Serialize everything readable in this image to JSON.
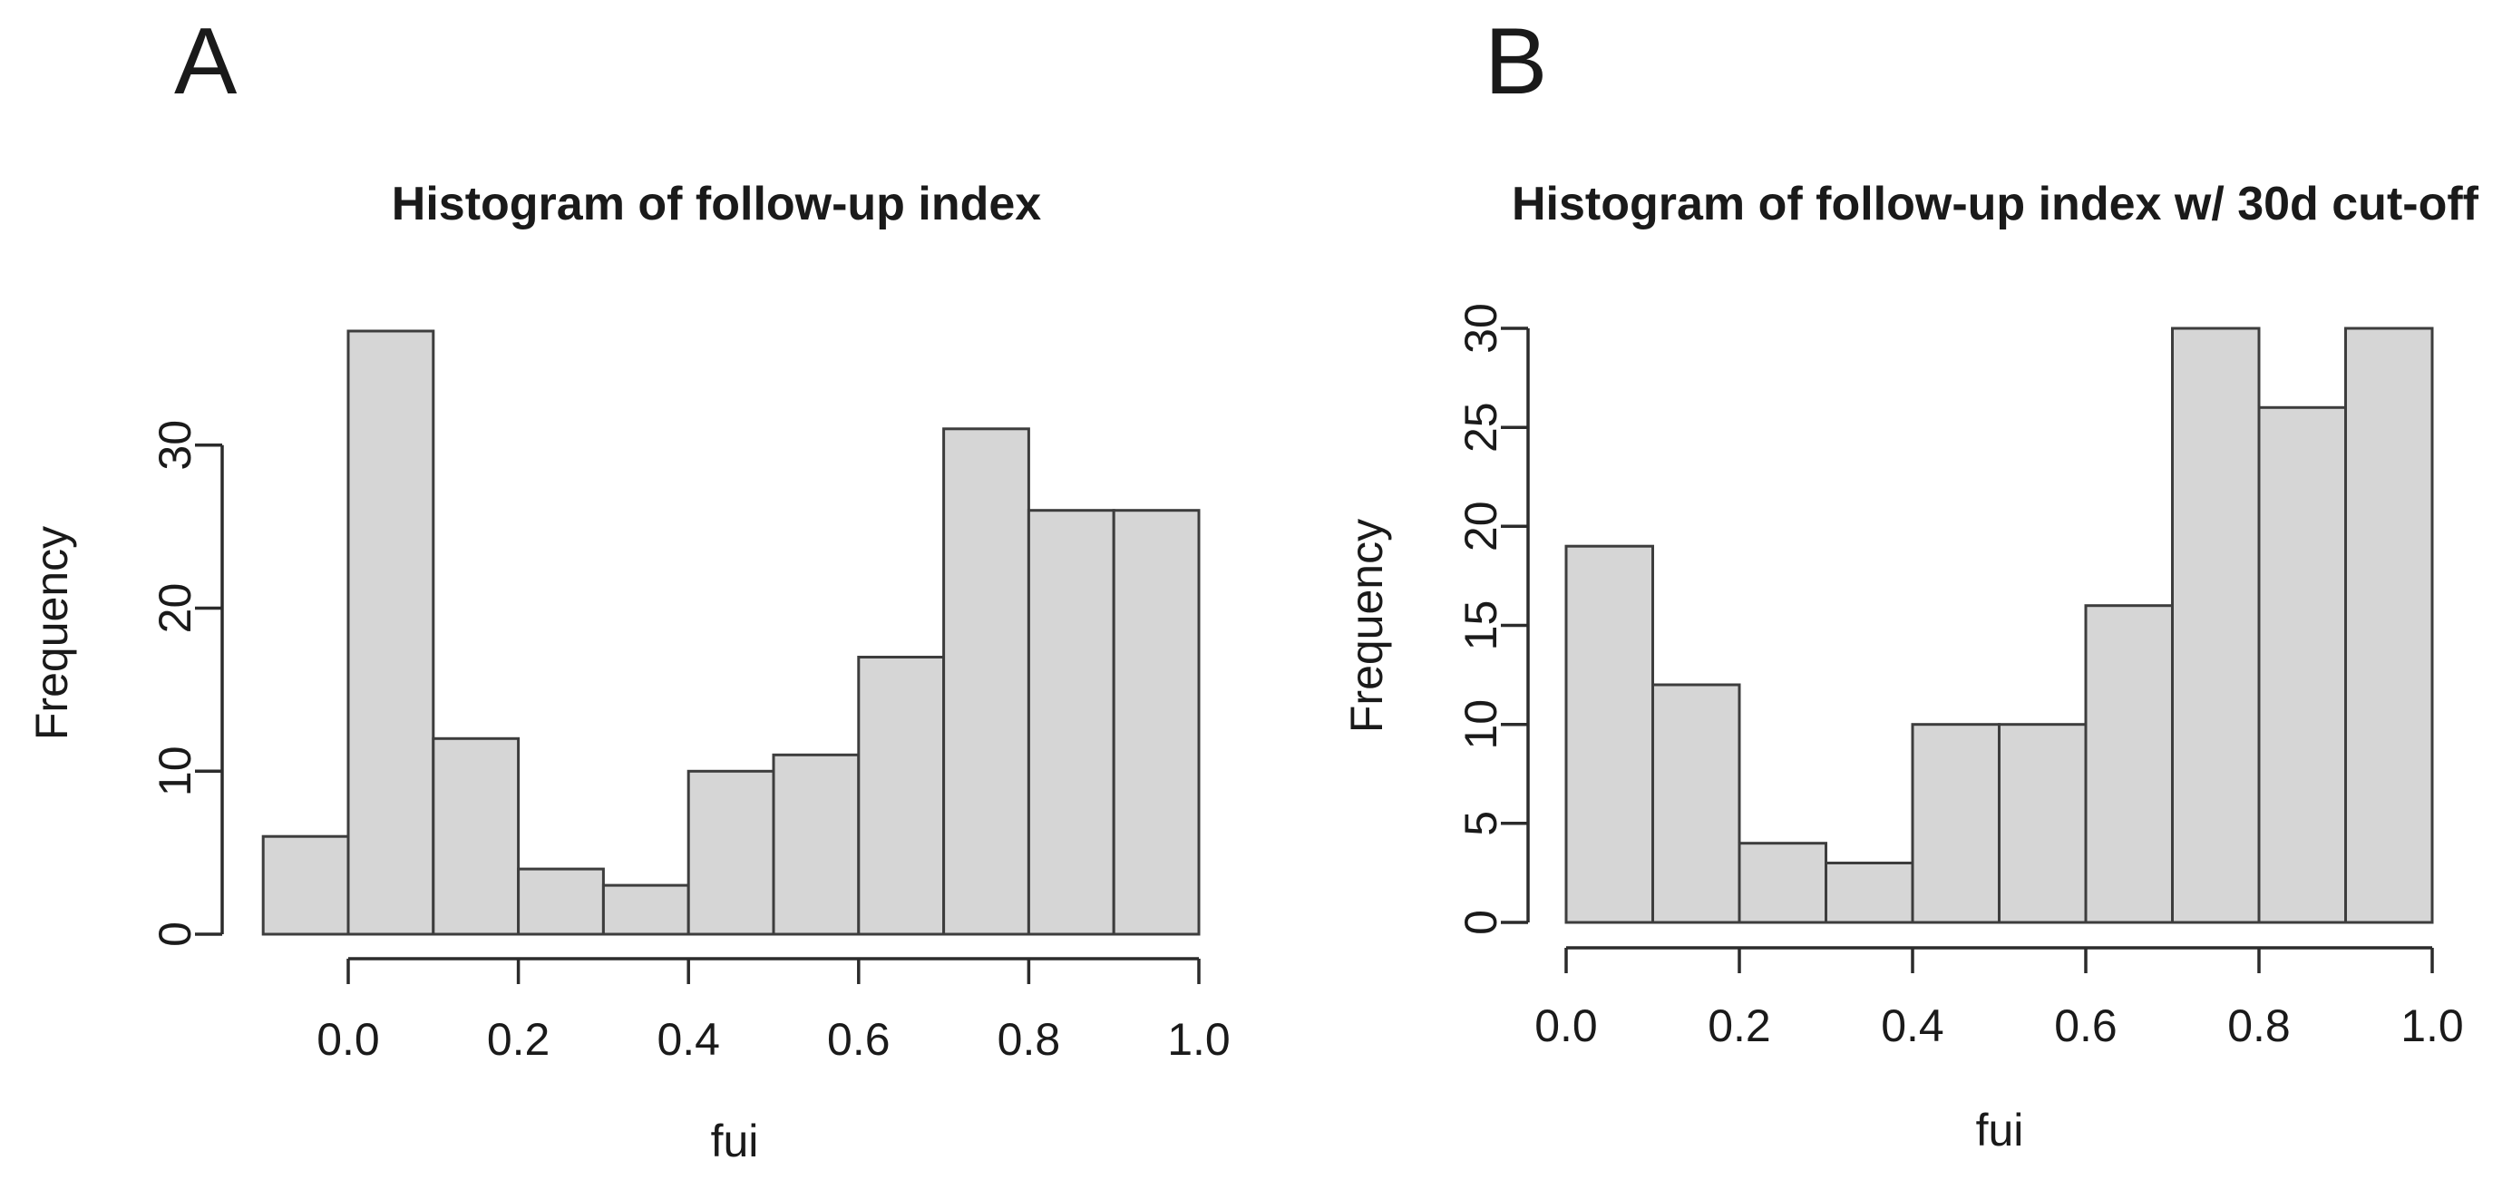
{
  "page": {
    "background": "#ffffff"
  },
  "colors": {
    "bar_fill": "#d6d6d6",
    "bar_stroke": "#3d3d3d",
    "axis": "#2b2b2b",
    "text": "#1a1a1a"
  },
  "chart_data": [
    {
      "type": "bar",
      "panel_label": "A",
      "title": "Histogram of follow-up index",
      "xlabel": "fui",
      "ylabel": "Frequency",
      "bin_edges": [
        -0.1,
        0.0,
        0.1,
        0.2,
        0.3,
        0.4,
        0.5,
        0.6,
        0.7,
        0.8,
        0.9,
        1.0
      ],
      "counts": [
        6,
        37,
        12,
        4,
        3,
        10,
        11,
        17,
        31,
        26,
        26
      ],
      "x_ticks": [
        0.0,
        0.2,
        0.4,
        0.6,
        0.8,
        1.0
      ],
      "x_tick_labels": [
        "0.0",
        "0.2",
        "0.4",
        "0.6",
        "0.8",
        "1.0"
      ],
      "y_ticks": [
        0,
        10,
        20,
        30
      ],
      "y_tick_labels": [
        "0",
        "10",
        "20",
        "30"
      ],
      "xlim": [
        -0.1,
        1.0
      ],
      "ylim": [
        0,
        37
      ],
      "grid": false,
      "legend": "none"
    },
    {
      "type": "bar",
      "panel_label": "B",
      "title": "Histogram of follow-up index w/ 30d cut-off",
      "xlabel": "fui",
      "ylabel": "Frequency",
      "bin_edges": [
        0.0,
        0.1,
        0.2,
        0.3,
        0.4,
        0.5,
        0.6,
        0.7,
        0.8,
        0.9,
        1.0
      ],
      "counts": [
        19,
        12,
        4,
        3,
        10,
        10,
        16,
        30,
        26,
        30
      ],
      "x_ticks": [
        0.0,
        0.2,
        0.4,
        0.6,
        0.8,
        1.0
      ],
      "x_tick_labels": [
        "0.0",
        "0.2",
        "0.4",
        "0.6",
        "0.8",
        "1.0"
      ],
      "y_ticks": [
        0,
        5,
        10,
        15,
        20,
        25,
        30
      ],
      "y_tick_labels": [
        "0",
        "5",
        "10",
        "15",
        "20",
        "25",
        "30"
      ],
      "xlim": [
        0.0,
        1.0
      ],
      "ylim": [
        0,
        30
      ],
      "grid": false,
      "legend": "none"
    }
  ]
}
